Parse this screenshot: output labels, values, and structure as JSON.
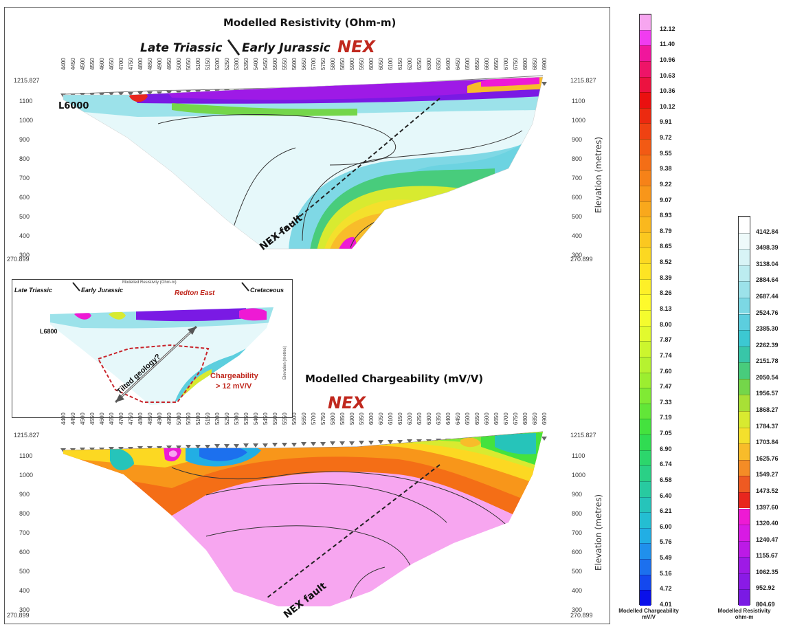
{
  "resistivity_panel": {
    "title": "Modelled Resistivity (Ohm-m)",
    "geo_left": "Late Triassic",
    "geo_right": "Early Jurassic",
    "nex_label": "NEX",
    "line_label": "L6000",
    "fault_label": "NEX fault",
    "top_left_value": "1215.827",
    "top_right_value": "1215.827",
    "bottom_left_value": "270.899",
    "bottom_right_value": "270.899",
    "elevation_label": "Elevation (metres)",
    "elevation_ticks": [
      "1100",
      "1000",
      "900",
      "800",
      "700",
      "600",
      "500",
      "400",
      "300"
    ]
  },
  "chargeability_panel": {
    "title": "Modelled Chargeability (mV/V)",
    "nex_label": "NEX",
    "fault_label": "NEX fault",
    "top_left_value": "1215.827",
    "top_right_value": "1215.827",
    "bottom_left_value": "270.899",
    "bottom_right_value": "270.899",
    "elevation_label": "Elevation (metres)",
    "elevation_ticks": [
      "1100",
      "1000",
      "900",
      "800",
      "700",
      "600",
      "500",
      "400",
      "300"
    ]
  },
  "station_ticks": [
    "4400",
    "4450",
    "4500",
    "4550",
    "4600",
    "4650",
    "4700",
    "4750",
    "4800",
    "4850",
    "4900",
    "4950",
    "5000",
    "5050",
    "5100",
    "5150",
    "5200",
    "5250",
    "5300",
    "5350",
    "5400",
    "5450",
    "5500",
    "5550",
    "5600",
    "5650",
    "5700",
    "5750",
    "5800",
    "5850",
    "5900",
    "5950",
    "6000",
    "6050",
    "6100",
    "6150",
    "6200",
    "6250",
    "6300",
    "6350",
    "6400",
    "6450",
    "6500",
    "6550",
    "6600",
    "6650",
    "6700",
    "6750",
    "6800",
    "6850",
    "6900"
  ],
  "inset": {
    "title": "Modelled Resistivity (Ohm-m)",
    "geo_left": "Late Triassic",
    "geo_mid": "Early Jurassic",
    "redton": "Redton East",
    "geo_right": "Cretaceous",
    "line_label": "L6800",
    "tilted": "Tilted geology?",
    "charge_line1": "Chargeability",
    "charge_line2": "> 12 mV/V",
    "elevation_label": "Elevation (metres)"
  },
  "chargeability_scale": {
    "caption_line1": "Modelled Chargeability",
    "caption_line2": "mV/V",
    "labels": [
      "12.12",
      "11.40",
      "10.96",
      "10.63",
      "10.36",
      "10.12",
      "9.91",
      "9.72",
      "9.55",
      "9.38",
      "9.22",
      "9.07",
      "8.93",
      "8.79",
      "8.65",
      "8.52",
      "8.39",
      "8.26",
      "8.13",
      "8.00",
      "7.87",
      "7.74",
      "7.60",
      "7.47",
      "7.33",
      "7.19",
      "7.05",
      "6.90",
      "6.74",
      "6.58",
      "6.40",
      "6.21",
      "6.00",
      "5.76",
      "5.49",
      "5.16",
      "4.72",
      "4.01"
    ],
    "colors": [
      "#f7a6f0",
      "#f03cf0",
      "#f0169c",
      "#ee1468",
      "#ec1240",
      "#ea1010",
      "#ec2a10",
      "#ef4212",
      "#f25a14",
      "#f46e16",
      "#f68218",
      "#f8961a",
      "#f9a81c",
      "#fab81e",
      "#fbc820",
      "#fcd822",
      "#fde424",
      "#fef028",
      "#fefa2c",
      "#f4fc2e",
      "#e2fa2e",
      "#ccf62e",
      "#b6f230",
      "#9cee30",
      "#80ea34",
      "#62e638",
      "#44e23e",
      "#30dc52",
      "#2cd66c",
      "#2ad086",
      "#28caa0",
      "#26c4ba",
      "#24bed2",
      "#22aee4",
      "#2090ec",
      "#1c70ee",
      "#1448ee",
      "#0a10ea"
    ]
  },
  "resistivity_scale": {
    "caption_line1": "Modelled Resistivity",
    "caption_line2": "ohm-m",
    "labels": [
      "4142.84",
      "3498.39",
      "3138.04",
      "2884.64",
      "2687.44",
      "2524.76",
      "2385.30",
      "2262.39",
      "2151.78",
      "2050.54",
      "1956.57",
      "1868.27",
      "1784.37",
      "1703.84",
      "1625.76",
      "1549.27",
      "1473.52",
      "1397.60",
      "1320.40",
      "1240.47",
      "1155.67",
      "1062.35",
      "952.92",
      "804.69"
    ],
    "colors": [
      "#ffffff",
      "#eefafa",
      "#d8f4f6",
      "#bcecf0",
      "#9ce2ea",
      "#7cd8e4",
      "#5ccede",
      "#3cc8d2",
      "#38c6a8",
      "#48cc7c",
      "#74d64a",
      "#a8e036",
      "#d8ea30",
      "#f4e02c",
      "#f8bc2a",
      "#f48c26",
      "#ee5a22",
      "#e8261e",
      "#ee1ad4",
      "#d81ae4",
      "#bc1ae6",
      "#9e1ae6",
      "#8a1ae6",
      "#7a1ae4"
    ]
  }
}
